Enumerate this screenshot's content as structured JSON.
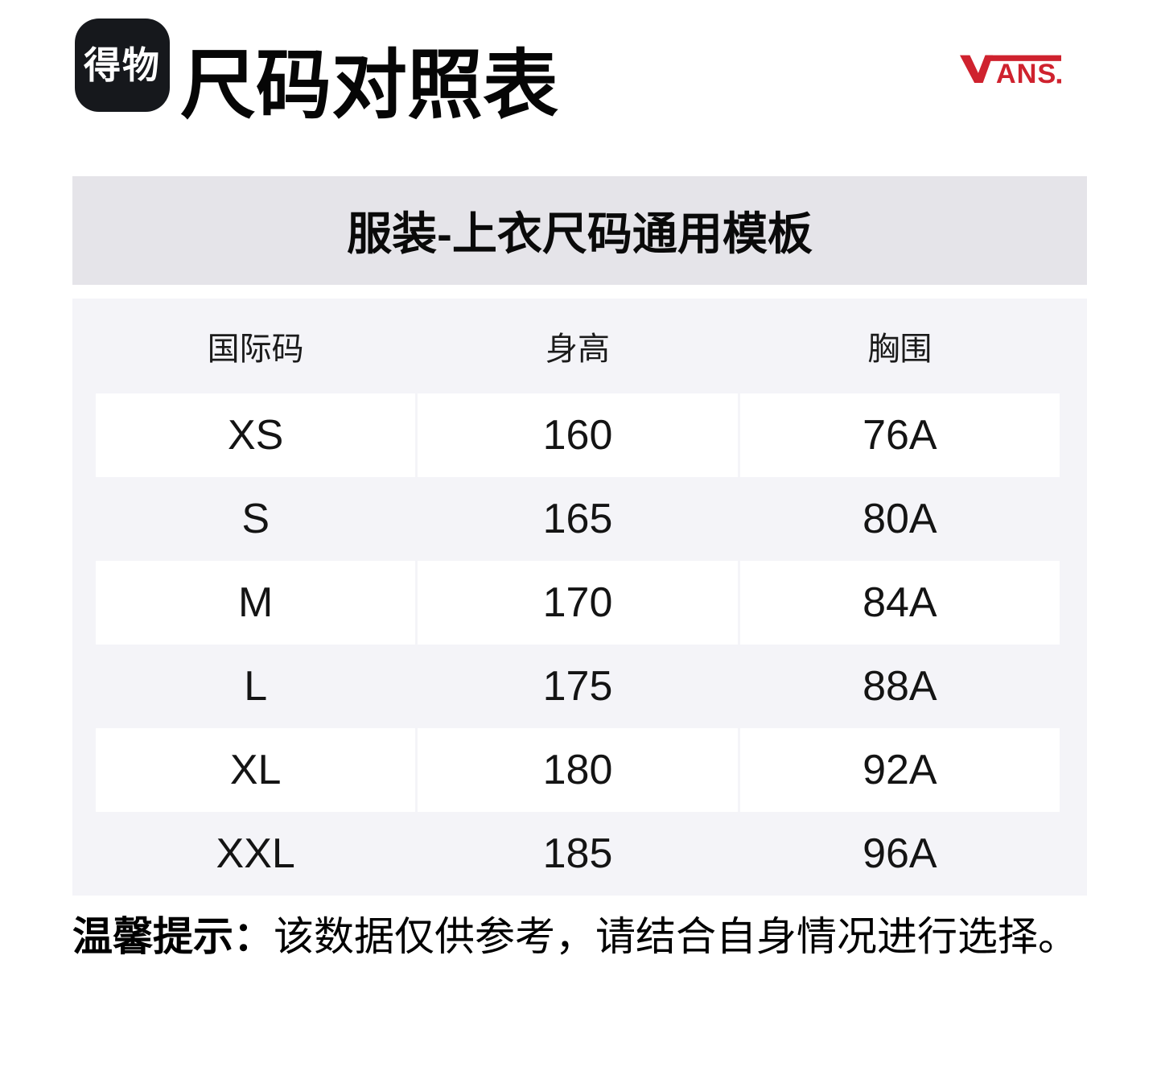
{
  "header": {
    "logo_text": "得物",
    "title": "尺码对照表",
    "brand": "VANS"
  },
  "banner": {
    "title": "服装-上衣尺码通用模板"
  },
  "table": {
    "columns": [
      "国际码",
      "身高",
      "胸围"
    ],
    "rows": [
      {
        "size": "XS",
        "height": "160",
        "chest": "76A"
      },
      {
        "size": "S",
        "height": "165",
        "chest": "80A"
      },
      {
        "size": "M",
        "height": "170",
        "chest": "84A"
      },
      {
        "size": "L",
        "height": "175",
        "chest": "88A"
      },
      {
        "size": "XL",
        "height": "180",
        "chest": "92A"
      },
      {
        "size": "XXL",
        "height": "185",
        "chest": "96A"
      }
    ]
  },
  "note": {
    "label": "温馨提示：",
    "text": "该数据仅供参考，请结合自身情况进行选择。"
  },
  "colors": {
    "brand-red": "#CF222E",
    "logo-bg": "#16181C",
    "banner-bg": "#E5E4E9",
    "section-bg": "#F4F4F8",
    "row-white": "#FFFFFF",
    "text": "#111111"
  }
}
